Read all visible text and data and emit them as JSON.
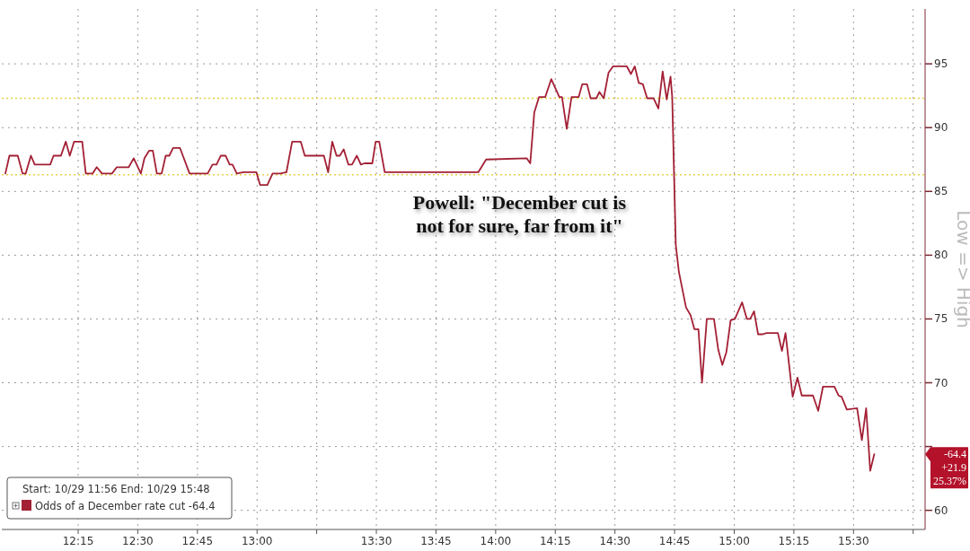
{
  "chart_data": {
    "type": "line",
    "ylabel": "Low => High",
    "legend_title": "Start: 10/29 11:56 End: 10/29 15:48",
    "legend": "bottom left",
    "grid": true,
    "line_style": "solid",
    "xlim": [
      11.93,
      15.8
    ],
    "ylim": [
      58.5,
      99.3
    ],
    "xticks": [
      {
        "value": 12.25,
        "label": "12:15"
      },
      {
        "value": 12.5,
        "label": "12:30"
      },
      {
        "value": 12.75,
        "label": "12:45"
      },
      {
        "value": 13,
        "label": "13:00"
      },
      {
        "value": 13.25,
        "label": null
      },
      {
        "value": 13.5,
        "label": "13:30"
      },
      {
        "value": 13.75,
        "label": "13:45"
      },
      {
        "value": 14,
        "label": "14:00"
      },
      {
        "value": 14.25,
        "label": "14:15"
      },
      {
        "value": 14.5,
        "label": "14:30"
      },
      {
        "value": 14.75,
        "label": "14:45"
      },
      {
        "value": 15,
        "label": "15:00"
      },
      {
        "value": 15.25,
        "label": "15:15"
      },
      {
        "value": 15.5,
        "label": "15:30"
      },
      {
        "value": 15.75,
        "label": null
      }
    ],
    "yticks": [
      60,
      {
        "value": 65,
        "label": null
      },
      70,
      75,
      80,
      85,
      90,
      95
    ],
    "ref_lines": [
      {
        "axis": "y",
        "value": 92.3,
        "color": "#e3d24a",
        "line_style": "dotted"
      },
      {
        "axis": "y",
        "value": 86.3,
        "color": "#e3d24a",
        "line_style": "dotted"
      }
    ],
    "annotations": [
      "Powell: \"December cut is\nnot for sure, far from it\"",
      "-64.4",
      "+21.9",
      "25.37%"
    ],
    "series": [
      {
        "name": "Odds of a December rate cut -64.4",
        "color": "#a32035",
        "x": [
          11.945,
          11.962,
          11.997,
          12.017,
          12.03,
          12.052,
          12.068,
          12.133,
          12.147,
          12.178,
          12.198,
          12.215,
          12.233,
          12.267,
          12.282,
          12.31,
          12.328,
          12.35,
          12.392,
          12.412,
          12.462,
          12.483,
          12.513,
          12.528,
          12.548,
          12.563,
          12.58,
          12.6,
          12.617,
          12.632,
          12.648,
          12.677,
          12.717,
          12.793,
          12.813,
          12.83,
          12.848,
          12.868,
          12.885,
          12.897,
          12.915,
          12.943,
          12.997,
          13.013,
          13.043,
          13.065,
          13.098,
          13.123,
          13.147,
          13.183,
          13.2,
          13.28,
          13.298,
          13.315,
          13.333,
          13.347,
          13.363,
          13.383,
          13.398,
          13.418,
          13.435,
          13.45,
          13.483,
          13.497,
          13.512,
          13.535,
          13.837,
          13.927,
          13.96,
          14.13,
          14.145,
          14.162,
          14.182,
          14.208,
          14.233,
          14.267,
          14.278,
          14.298,
          14.318,
          14.348,
          14.363,
          14.383,
          14.398,
          14.422,
          14.435,
          14.453,
          14.473,
          14.492,
          14.55,
          14.567,
          14.583,
          14.6,
          14.617,
          14.635,
          14.662,
          14.682,
          14.7,
          14.717,
          14.733,
          14.74,
          14.755,
          14.768,
          14.798,
          14.817,
          14.833,
          14.85,
          14.865,
          14.885,
          14.915,
          14.933,
          14.95,
          14.967,
          14.985,
          15.003,
          15.033,
          15.053,
          15.067,
          15.083,
          15.1,
          15.12,
          15.135,
          15.183,
          15.2,
          15.215,
          15.245,
          15.265,
          15.283,
          15.33,
          15.352,
          15.372,
          15.42,
          15.437,
          15.45,
          15.472,
          15.515,
          15.535,
          15.553,
          15.57,
          15.587
        ],
        "values": [
          86.4,
          87.8,
          87.8,
          86.4,
          86.4,
          87.8,
          87.1,
          87.1,
          87.8,
          87.8,
          88.9,
          87.8,
          88.9,
          88.9,
          86.4,
          86.4,
          86.9,
          86.4,
          86.4,
          86.9,
          86.9,
          87.6,
          86.4,
          87.6,
          88.2,
          88.2,
          86.4,
          86.4,
          87.8,
          87.8,
          88.4,
          88.4,
          86.4,
          86.4,
          87.1,
          87.1,
          87.8,
          87.8,
          87.1,
          87.1,
          86.4,
          86.5,
          86.5,
          85.5,
          85.5,
          86.4,
          86.4,
          86.5,
          88.9,
          88.9,
          87.8,
          87.8,
          86.5,
          88.9,
          87.8,
          87.8,
          88.3,
          87.1,
          87.1,
          87.8,
          87.1,
          87.2,
          87.2,
          88.9,
          88.9,
          86.5,
          86.5,
          86.5,
          87.5,
          87.6,
          87.2,
          91.2,
          92.4,
          92.4,
          93.8,
          92.4,
          92.4,
          89.9,
          92.4,
          92.4,
          93.4,
          93.4,
          92.3,
          92.3,
          92.8,
          92.3,
          94.3,
          94.8,
          94.8,
          94.2,
          94.8,
          93.5,
          93.4,
          92.3,
          92.3,
          91.5,
          94.4,
          92.2,
          94.0,
          92.4,
          80.8,
          78.7,
          75.9,
          75.3,
          74.2,
          74.2,
          70.0,
          75.0,
          75.0,
          72.6,
          71.4,
          72.4,
          74.9,
          75.0,
          76.3,
          75.0,
          75.0,
          75.6,
          73.8,
          73.8,
          73.9,
          73.9,
          72.5,
          73.9,
          68.9,
          70.4,
          69.0,
          69.0,
          67.8,
          69.7,
          69.7,
          69.0,
          68.9,
          67.9,
          68.0,
          65.5,
          68.0,
          63.1,
          64.4
        ]
      }
    ]
  }
}
